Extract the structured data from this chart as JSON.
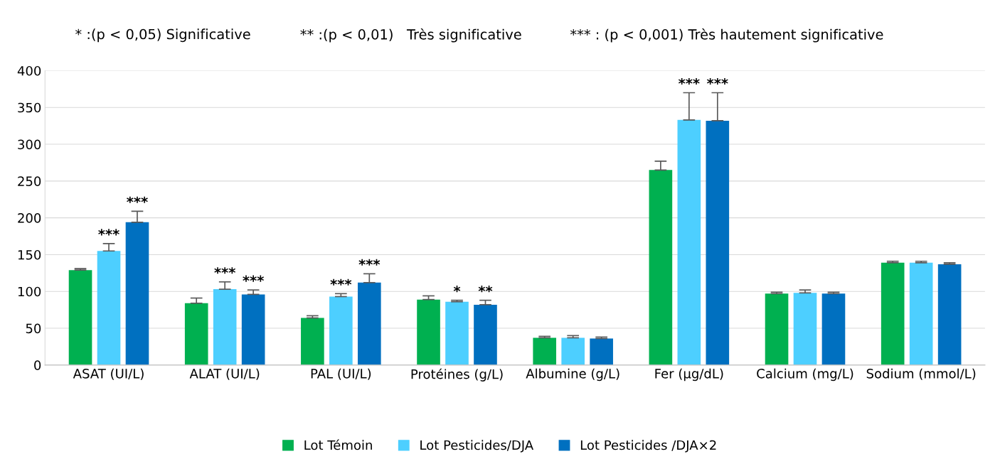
{
  "chart_data": {
    "type": "bar",
    "annotations": [
      "* :(p < 0,05) Significative",
      "** :(p < 0,01)   Très significative",
      "*** : (p < 0,001) Très hautement significative"
    ],
    "categories": [
      "ASAT (UI/L)",
      "ALAT (UI/L)",
      "PAL (UI/L)",
      "Protéines (g/L)",
      "Albumine (g/L)",
      "Fer (µg/dL)",
      "Calcium (mg/L)",
      "Sodium (mmol/L)"
    ],
    "series": [
      {
        "name": "Lot Témoin",
        "color": "#00b050",
        "values": [
          129,
          84,
          64,
          89,
          37,
          265,
          97,
          139
        ],
        "errors": [
          2,
          7,
          3,
          5,
          2,
          12,
          2,
          2
        ],
        "value_labels": [
          null,
          null,
          null,
          null,
          null,
          null,
          null,
          null
        ]
      },
      {
        "name": "Lot Pesticides/DJA",
        "color": "#4dcfff",
        "values": [
          155,
          103,
          93,
          86,
          37,
          333,
          98,
          139
        ],
        "errors": [
          10,
          10,
          4,
          2,
          3,
          37,
          4,
          2
        ],
        "value_labels": [
          "***",
          "***",
          "***",
          "*",
          null,
          "***",
          null,
          null
        ]
      },
      {
        "name": "Lot Pesticides /DJA×2",
        "color": "#0070c0",
        "values": [
          194,
          96,
          112,
          82,
          36,
          332,
          97,
          137
        ],
        "errors": [
          15,
          6,
          12,
          6,
          2,
          38,
          2,
          2
        ],
        "value_labels": [
          "***",
          "***",
          "***",
          "**",
          null,
          "***",
          null,
          null
        ]
      }
    ],
    "ylim": [
      0,
      400
    ],
    "yticks": [
      0,
      50,
      100,
      150,
      200,
      250,
      300,
      350,
      400
    ],
    "grid": "y",
    "legend": "bottom"
  }
}
